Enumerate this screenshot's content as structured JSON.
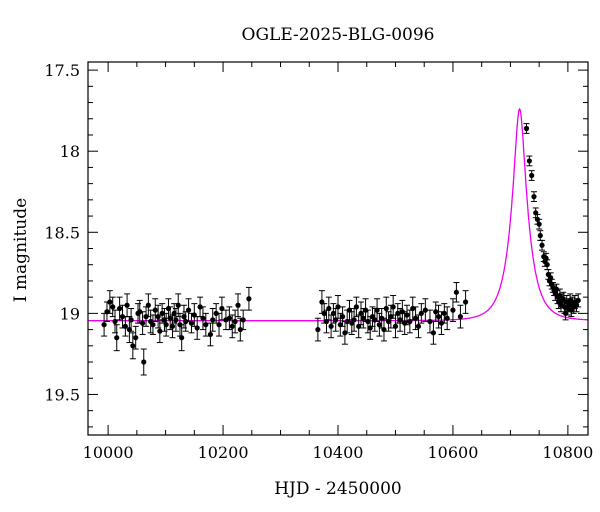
{
  "chart_data": {
    "type": "scatter",
    "title": "OGLE-2025-BLG-0096",
    "xlabel": "HJD - 2450000",
    "ylabel": "I magnitude",
    "xlim": [
      9965,
      10835
    ],
    "ylim": [
      19.75,
      17.45
    ],
    "y_inverted": true,
    "grid": false,
    "x_ticks": [
      10000,
      10200,
      10400,
      10600,
      10800
    ],
    "x_tick_labels": [
      "10000",
      "10200",
      "10400",
      "10600",
      "10800"
    ],
    "y_ticks": [
      17.5,
      18,
      18.5,
      19,
      19.5
    ],
    "y_tick_labels": [
      "17.5",
      "18",
      "18.5",
      "19",
      "19.5"
    ],
    "colors": {
      "data": "#000000",
      "model": "#ee00ee"
    },
    "series": [
      {
        "kind": "points_with_errorbars",
        "points": [
          [
            9993,
            19.07,
            0.07
          ],
          [
            9998,
            18.99,
            0.06
          ],
          [
            10003,
            18.93,
            0.07
          ],
          [
            10008,
            18.96,
            0.06
          ],
          [
            10012,
            19.05,
            0.07
          ],
          [
            10015,
            19.15,
            0.08
          ],
          [
            10020,
            18.97,
            0.07
          ],
          [
            10025,
            19.02,
            0.07
          ],
          [
            10030,
            19.08,
            0.06
          ],
          [
            10033,
            18.95,
            0.07
          ],
          [
            10037,
            19.1,
            0.08
          ],
          [
            10040,
            19.04,
            0.07
          ],
          [
            10043,
            19.2,
            0.08
          ],
          [
            10048,
            19.15,
            0.07
          ],
          [
            10052,
            19.0,
            0.06
          ],
          [
            10055,
            18.99,
            0.07
          ],
          [
            10060,
            19.06,
            0.07
          ],
          [
            10062,
            19.3,
            0.08
          ],
          [
            10066,
            19.02,
            0.06
          ],
          [
            10070,
            18.95,
            0.07
          ],
          [
            10074,
            19.05,
            0.07
          ],
          [
            10078,
            19.07,
            0.06
          ],
          [
            10082,
            18.98,
            0.07
          ],
          [
            10087,
            19.02,
            0.07
          ],
          [
            10090,
            19.11,
            0.07
          ],
          [
            10094,
            19.0,
            0.06
          ],
          [
            10098,
            19.04,
            0.07
          ],
          [
            10101,
            19.07,
            0.07
          ],
          [
            10105,
            18.97,
            0.06
          ],
          [
            10108,
            19.03,
            0.07
          ],
          [
            10112,
            19.08,
            0.07
          ],
          [
            10115,
            19.0,
            0.06
          ],
          [
            10118,
            19.04,
            0.07
          ],
          [
            10122,
            18.95,
            0.07
          ],
          [
            10125,
            19.07,
            0.07
          ],
          [
            10128,
            19.15,
            0.08
          ],
          [
            10132,
            19.02,
            0.07
          ],
          [
            10135,
            19.05,
            0.06
          ],
          [
            10140,
            18.98,
            0.07
          ],
          [
            10145,
            19.06,
            0.06
          ],
          [
            10150,
            19.01,
            0.07
          ],
          [
            10155,
            19.09,
            0.07
          ],
          [
            10160,
            18.96,
            0.06
          ],
          [
            10165,
            19.03,
            0.07
          ],
          [
            10170,
            19.07,
            0.07
          ],
          [
            10178,
            19.13,
            0.07
          ],
          [
            10182,
            19.04,
            0.07
          ],
          [
            10188,
            19.0,
            0.06
          ],
          [
            10193,
            19.07,
            0.07
          ],
          [
            10198,
            18.97,
            0.07
          ],
          [
            10205,
            19.04,
            0.06
          ],
          [
            10211,
            19.03,
            0.07
          ],
          [
            10216,
            19.08,
            0.07
          ],
          [
            10221,
            19.05,
            0.07
          ],
          [
            10226,
            18.95,
            0.07
          ],
          [
            10230,
            19.1,
            0.07
          ],
          [
            10235,
            19.04,
            0.06
          ],
          [
            10245,
            18.91,
            0.07
          ],
          [
            10365,
            19.1,
            0.07
          ],
          [
            10372,
            18.93,
            0.07
          ],
          [
            10376,
            19.0,
            0.06
          ],
          [
            10380,
            19.05,
            0.07
          ],
          [
            10384,
            18.97,
            0.07
          ],
          [
            10388,
            19.08,
            0.07
          ],
          [
            10392,
            19.0,
            0.06
          ],
          [
            10396,
            19.04,
            0.07
          ],
          [
            10400,
            18.96,
            0.07
          ],
          [
            10404,
            19.07,
            0.07
          ],
          [
            10408,
            19.02,
            0.06
          ],
          [
            10412,
            19.12,
            0.07
          ],
          [
            10416,
            19.05,
            0.07
          ],
          [
            10420,
            18.98,
            0.06
          ],
          [
            10424,
            19.06,
            0.07
          ],
          [
            10428,
            19.04,
            0.07
          ],
          [
            10432,
            18.96,
            0.06
          ],
          [
            10436,
            19.08,
            0.07
          ],
          [
            10440,
            19.0,
            0.07
          ],
          [
            10444,
            19.03,
            0.06
          ],
          [
            10448,
            18.98,
            0.07
          ],
          [
            10452,
            19.05,
            0.07
          ],
          [
            10456,
            19.09,
            0.07
          ],
          [
            10460,
            19.02,
            0.06
          ],
          [
            10464,
            19.04,
            0.07
          ],
          [
            10468,
            18.98,
            0.07
          ],
          [
            10472,
            19.07,
            0.07
          ],
          [
            10476,
            19.03,
            0.06
          ],
          [
            10480,
            19.1,
            0.07
          ],
          [
            10484,
            18.97,
            0.07
          ],
          [
            10488,
            19.05,
            0.06
          ],
          [
            10492,
            19.02,
            0.07
          ],
          [
            10496,
            18.96,
            0.07
          ],
          [
            10500,
            19.08,
            0.07
          ],
          [
            10504,
            19.0,
            0.06
          ],
          [
            10508,
            19.04,
            0.07
          ],
          [
            10512,
            18.99,
            0.07
          ],
          [
            10516,
            19.06,
            0.07
          ],
          [
            10520,
            19.01,
            0.06
          ],
          [
            10525,
            19.05,
            0.07
          ],
          [
            10530,
            18.97,
            0.07
          ],
          [
            10535,
            19.03,
            0.07
          ],
          [
            10540,
            19.08,
            0.07
          ],
          [
            10545,
            19.0,
            0.06
          ],
          [
            10552,
            18.98,
            0.07
          ],
          [
            10560,
            19.05,
            0.07
          ],
          [
            10566,
            19.12,
            0.07
          ],
          [
            10570,
            18.99,
            0.06
          ],
          [
            10575,
            19.02,
            0.07
          ],
          [
            10580,
            19.06,
            0.07
          ],
          [
            10585,
            19.0,
            0.06
          ],
          [
            10590,
            19.03,
            0.07
          ],
          [
            10600,
            18.98,
            0.07
          ],
          [
            10606,
            18.87,
            0.06
          ],
          [
            10613,
            19.02,
            0.07
          ],
          [
            10622,
            18.93,
            0.07
          ],
          [
            10728,
            17.86,
            0.03
          ],
          [
            10733,
            18.06,
            0.03
          ],
          [
            10737,
            18.15,
            0.03
          ],
          [
            10741,
            18.28,
            0.03
          ],
          [
            10744,
            18.38,
            0.03
          ],
          [
            10747,
            18.42,
            0.03
          ],
          [
            10750,
            18.45,
            0.03
          ],
          [
            10752,
            18.52,
            0.03
          ],
          [
            10755,
            18.58,
            0.03
          ],
          [
            10758,
            18.65,
            0.03
          ],
          [
            10760,
            18.68,
            0.03
          ],
          [
            10762,
            18.66,
            0.03
          ],
          [
            10764,
            18.7,
            0.03
          ],
          [
            10766,
            18.76,
            0.03
          ],
          [
            10768,
            18.8,
            0.03
          ],
          [
            10770,
            18.78,
            0.03
          ],
          [
            10772,
            18.82,
            0.03
          ],
          [
            10774,
            18.84,
            0.03
          ],
          [
            10776,
            18.86,
            0.03
          ],
          [
            10778,
            18.88,
            0.04
          ],
          [
            10780,
            18.85,
            0.03
          ],
          [
            10782,
            18.9,
            0.04
          ],
          [
            10784,
            18.93,
            0.04
          ],
          [
            10786,
            18.89,
            0.04
          ],
          [
            10788,
            18.95,
            0.04
          ],
          [
            10790,
            18.92,
            0.04
          ],
          [
            10792,
            18.91,
            0.04
          ],
          [
            10794,
            18.96,
            0.04
          ],
          [
            10796,
            19.0,
            0.04
          ],
          [
            10798,
            18.93,
            0.04
          ],
          [
            10800,
            18.97,
            0.04
          ],
          [
            10802,
            18.95,
            0.04
          ],
          [
            10804,
            18.92,
            0.04
          ],
          [
            10806,
            18.98,
            0.04
          ],
          [
            10808,
            18.94,
            0.04
          ],
          [
            10810,
            18.96,
            0.04
          ],
          [
            10812,
            18.93,
            0.04
          ],
          [
            10815,
            18.95,
            0.04
          ],
          [
            10818,
            18.92,
            0.04
          ]
        ]
      },
      {
        "kind": "model_curve",
        "baseline_mag": 19.045,
        "peak_mag": 17.74,
        "peak_hjd": 10716,
        "timescale_days": 28
      }
    ]
  }
}
